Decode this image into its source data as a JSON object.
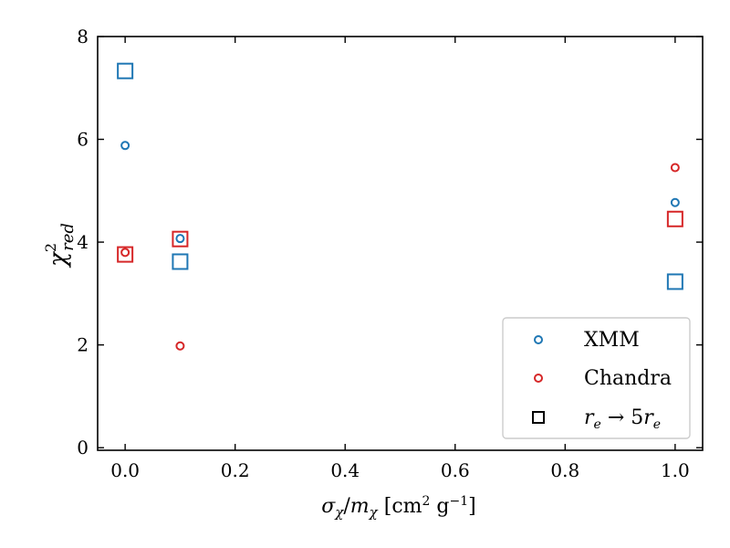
{
  "chart_data": {
    "type": "scatter",
    "xlabel": "σχ/mχ [cm² g⁻¹]",
    "ylabel": "χ²red",
    "xlim": [
      -0.05,
      1.05
    ],
    "ylim": [
      -0.05,
      8.0
    ],
    "xticks": [
      "0.0",
      "0.2",
      "0.4",
      "0.6",
      "0.8",
      "1.0"
    ],
    "yticks": [
      "0",
      "2",
      "4",
      "6",
      "8"
    ],
    "grid": false,
    "legend_position": "lower-right",
    "series": [
      {
        "name": "XMM",
        "marker": "circle",
        "color": "#1f77b4",
        "points": [
          {
            "x": 0.0,
            "y": 5.88
          },
          {
            "x": 0.1,
            "y": 4.07
          },
          {
            "x": 1.0,
            "y": 4.77
          }
        ]
      },
      {
        "name": "Chandra",
        "marker": "circle",
        "color": "#d62728",
        "points": [
          {
            "x": 0.0,
            "y": 3.8
          },
          {
            "x": 0.1,
            "y": 1.98
          },
          {
            "x": 1.0,
            "y": 5.45
          }
        ]
      },
      {
        "name": "XMM, re → 5re",
        "marker": "square",
        "color": "#1f77b4",
        "points": [
          {
            "x": 0.0,
            "y": 7.33
          },
          {
            "x": 0.1,
            "y": 3.62
          },
          {
            "x": 1.0,
            "y": 3.23
          }
        ]
      },
      {
        "name": "Chandra, re → 5re",
        "marker": "square",
        "color": "#d62728",
        "points": [
          {
            "x": 0.0,
            "y": 3.76
          },
          {
            "x": 0.1,
            "y": 4.06
          },
          {
            "x": 1.0,
            "y": 4.45
          }
        ]
      }
    ],
    "legend": [
      {
        "label": "XMM",
        "marker": "circle",
        "color": "#1f77b4"
      },
      {
        "label": "Chandra",
        "marker": "circle",
        "color": "#d62728"
      },
      {
        "label": "re → 5re",
        "marker": "square",
        "color": "#000000"
      }
    ]
  }
}
